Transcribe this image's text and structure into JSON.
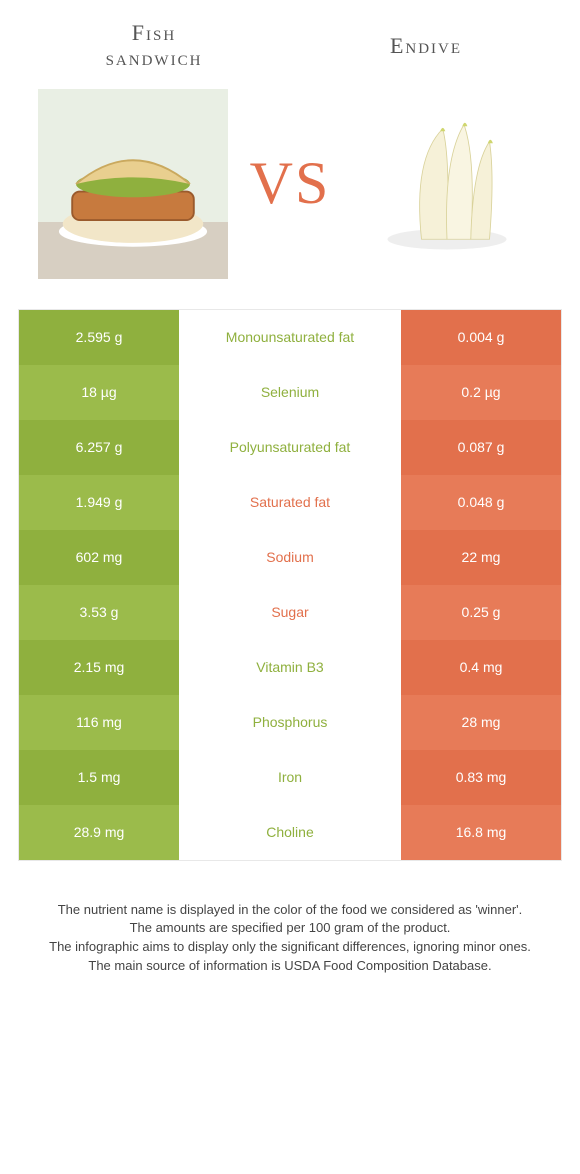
{
  "titles": {
    "left": "Fish\nsandwich",
    "right": "Endive"
  },
  "vs_label": "VS",
  "colors": {
    "left_bg_a": "#8fb03e",
    "left_bg_b": "#9bbb4b",
    "right_bg_a": "#e2704c",
    "right_bg_b": "#e77b58",
    "mid_text_green": "#8fb03e",
    "mid_text_orange": "#e2704c",
    "row_border": "#ffffff"
  },
  "rows": [
    {
      "left": "2.595 g",
      "label": "Monounsaturated fat",
      "right": "0.004 g",
      "winner": "left"
    },
    {
      "left": "18 µg",
      "label": "Selenium",
      "right": "0.2 µg",
      "winner": "left"
    },
    {
      "left": "6.257 g",
      "label": "Polyunsaturated fat",
      "right": "0.087 g",
      "winner": "left"
    },
    {
      "left": "1.949 g",
      "label": "Saturated fat",
      "right": "0.048 g",
      "winner": "right"
    },
    {
      "left": "602 mg",
      "label": "Sodium",
      "right": "22 mg",
      "winner": "right"
    },
    {
      "left": "3.53 g",
      "label": "Sugar",
      "right": "0.25 g",
      "winner": "right"
    },
    {
      "left": "2.15 mg",
      "label": "Vitamin B3",
      "right": "0.4 mg",
      "winner": "left"
    },
    {
      "left": "116 mg",
      "label": "Phosphorus",
      "right": "28 mg",
      "winner": "left"
    },
    {
      "left": "1.5 mg",
      "label": "Iron",
      "right": "0.83 mg",
      "winner": "left"
    },
    {
      "left": "28.9 mg",
      "label": "Choline",
      "right": "16.8 mg",
      "winner": "left"
    }
  ],
  "footnotes": [
    "The nutrient name is displayed in the color of the food we considered as 'winner'.",
    "The amounts are specified per 100 gram of the product.",
    "The infographic aims to display only the significant differences, ignoring minor ones.",
    "The main source of information is USDA Food Composition Database."
  ]
}
